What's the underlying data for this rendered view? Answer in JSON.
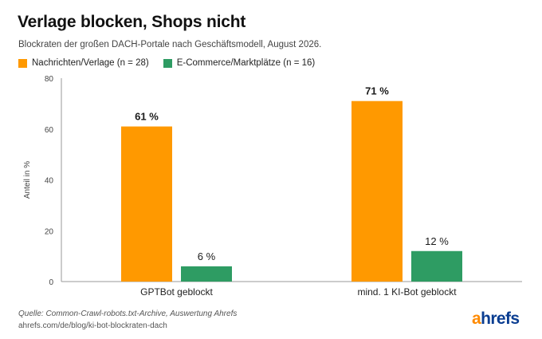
{
  "title": "Verlage blocken, Shops nicht",
  "subtitle": "Blockraten der großen DACH-Portale nach Geschäftsmodell, August 2026.",
  "colors": {
    "series1": "#FF9900",
    "series2": "#2E9C63",
    "logo_accent": "#FF8A00",
    "logo_main": "#0A3D91"
  },
  "chart_data": {
    "type": "bar",
    "categories": [
      "GPTBot geblockt",
      "mind. 1 KI-Bot geblockt"
    ],
    "series": [
      {
        "name": "Nachrichten/Verlage (n = 28)",
        "values": [
          61,
          71
        ],
        "labels": [
          "61 %",
          "71 %"
        ]
      },
      {
        "name": "E-Commerce/Marktplätze (n = 16)",
        "values": [
          6,
          12
        ],
        "labels": [
          "6 %",
          "12 %"
        ]
      }
    ],
    "ylabel": "Anteil in %",
    "ylim": [
      0,
      80
    ],
    "yticks": [
      "0",
      "20",
      "40",
      "60",
      "80"
    ],
    "grid": false,
    "legend": "top-left"
  },
  "footer": {
    "source": "Quelle: Common-Crawl-robots.txt-Archive, Auswertung Ahrefs",
    "url": "ahrefs.com/de/blog/ki-bot-blockraten-dach"
  },
  "logo": {
    "accent": "a",
    "rest": "hrefs"
  }
}
